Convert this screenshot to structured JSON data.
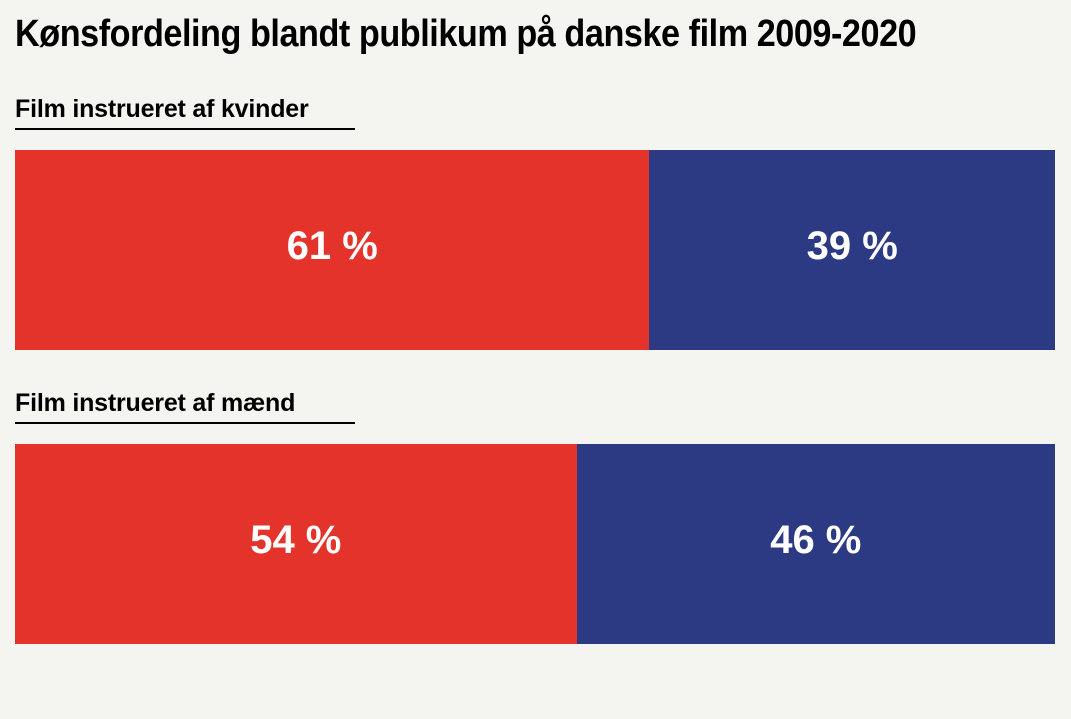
{
  "title": "Kønsfordeling blandt publikum på danske film 2009-2020",
  "sections": [
    {
      "label": "Film instrueret af kvinder",
      "segments": [
        {
          "text": "61 %",
          "pct": 61,
          "color": "#e4332b"
        },
        {
          "text": "39 %",
          "pct": 39,
          "color": "#2b3a82"
        }
      ]
    },
    {
      "label": "Film instrueret af mænd",
      "segments": [
        {
          "text": "54 %",
          "pct": 54,
          "color": "#e4332b"
        },
        {
          "text": "46 %",
          "pct": 46,
          "color": "#2b3a82"
        }
      ]
    }
  ],
  "colors": {
    "background": "#f4f4f1",
    "red": "#e4332b",
    "blue": "#2b3a82",
    "heading_text": "#000000",
    "value_text": "#ffffff"
  },
  "chart_data": {
    "type": "bar",
    "subtype": "horizontal-stacked-100pct",
    "title": "Kønsfordeling blandt publikum på danske film 2009-2020",
    "categories": [
      "Film instrueret af kvinder",
      "Film instrueret af mænd"
    ],
    "series": [
      {
        "name": "red-segment",
        "color": "#e4332b",
        "values": [
          61,
          54
        ]
      },
      {
        "name": "blue-segment",
        "color": "#2b3a82",
        "values": [
          39,
          46
        ]
      }
    ],
    "value_labels": [
      [
        "61 %",
        "39 %"
      ],
      [
        "54 %",
        "46 %"
      ]
    ],
    "xlim": [
      0,
      100
    ],
    "legend": "none",
    "grid": false
  }
}
